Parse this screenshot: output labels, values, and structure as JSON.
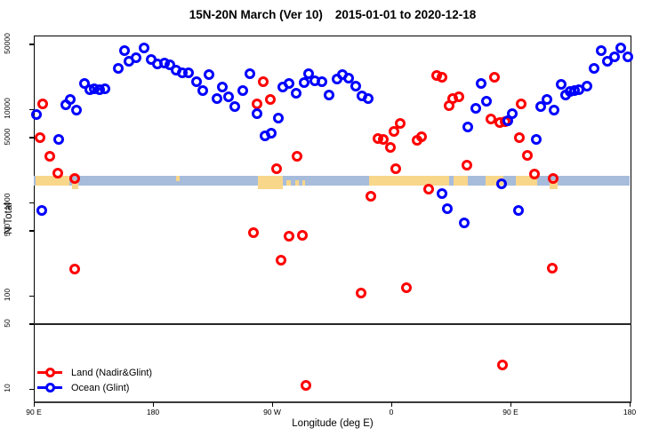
{
  "chart_data": {
    "type": "scatter",
    "title": "15N-20N March (Ver 10)",
    "subtitle": "2015-01-01 to 2020-12-18",
    "xlabel": "Longitude (deg E)",
    "ylabel": "N Total",
    "x_range": [
      90,
      540
    ],
    "x_ticks": [
      {
        "lon": 90,
        "label": "90 E"
      },
      {
        "lon": 180,
        "label": "180"
      },
      {
        "lon": 270,
        "label": "90 W"
      },
      {
        "lon": 360,
        "label": "0"
      },
      {
        "lon": 450,
        "label": "90 E"
      },
      {
        "lon": 540,
        "label": "180"
      }
    ],
    "y_scale": "log",
    "y_range": [
      9,
      57000
    ],
    "y_ticks": [
      10,
      50,
      100,
      500,
      1000,
      5000,
      10000,
      50000
    ],
    "reference_line_y": 50,
    "grid": false,
    "legend_position": "bottom-left",
    "colors": {
      "land": "#ff0000",
      "ocean": "#0000ff",
      "map_ocean": "#a7bcdb",
      "map_land": "#f8d68a"
    },
    "map_band": {
      "description": "15N-20N latitude strip world map: ocean blue with tan land patches",
      "value_range": [
        1500,
        1950
      ],
      "land_patches": [
        {
          "from": 91.3,
          "to": 117.0,
          "part": "full"
        },
        {
          "from": 119.0,
          "to": 123.6,
          "part": "bottomdeep"
        },
        {
          "from": 197.5,
          "to": 200.1,
          "part": "top"
        },
        {
          "from": 259.3,
          "to": 278.1,
          "part": "deep"
        },
        {
          "from": 280.8,
          "to": 284.1,
          "part": "bottom"
        },
        {
          "from": 287.5,
          "to": 290.2,
          "part": "bottom"
        },
        {
          "from": 292.8,
          "to": 294.8,
          "part": "bottom"
        },
        {
          "from": 343.2,
          "to": 403.6,
          "part": "full"
        },
        {
          "from": 407.0,
          "to": 417.8,
          "part": "full"
        },
        {
          "from": 431.2,
          "to": 444.6,
          "part": "full"
        },
        {
          "from": 454.0,
          "to": 470.1,
          "part": "full"
        },
        {
          "from": 479.5,
          "to": 485.5,
          "part": "bottomdeep"
        }
      ]
    },
    "series": [
      {
        "name": "Land (Nadir&Glint)",
        "color_key": "land",
        "points": [
          [
            94.7,
            5000
          ],
          [
            96.7,
            11400
          ],
          [
            102.1,
            3100
          ],
          [
            108.1,
            2060
          ],
          [
            120.9,
            1810
          ],
          [
            120.9,
            193
          ],
          [
            255.9,
            470
          ],
          [
            276.7,
            240
          ],
          [
            282.8,
            430
          ],
          [
            292.8,
            440
          ],
          [
            258.6,
            11400
          ],
          [
            263.3,
            19700
          ],
          [
            268.6,
            12700
          ],
          [
            273.3,
            2300
          ],
          [
            288.8,
            3100
          ],
          [
            337.1,
            107
          ],
          [
            344.6,
            1170
          ],
          [
            349.9,
            4850
          ],
          [
            353.9,
            4740
          ],
          [
            359.3,
            3890
          ],
          [
            362.0,
            5780
          ],
          [
            366.7,
            7050
          ],
          [
            363.3,
            2300
          ],
          [
            371.4,
            122
          ],
          [
            379.5,
            4640
          ],
          [
            382.8,
            5070
          ],
          [
            388.2,
            1390
          ],
          [
            394.2,
            23000
          ],
          [
            398.3,
            22000
          ],
          [
            403.6,
            10900
          ],
          [
            406.3,
            13000
          ],
          [
            411.0,
            13600
          ],
          [
            417.0,
            2510
          ],
          [
            435.2,
            7850
          ],
          [
            437.8,
            22000
          ],
          [
            441.9,
            7200
          ],
          [
            445.9,
            7360
          ],
          [
            456.7,
            4960
          ],
          [
            458.0,
            11400
          ],
          [
            462.7,
            3200
          ],
          [
            468.1,
            2010
          ],
          [
            482.2,
            1810
          ],
          [
            481.5,
            197
          ],
          [
            295.5,
            11
          ],
          [
            443.9,
            18
          ]
        ]
      },
      {
        "name": "Ocean (Glint)",
        "color_key": "ocean",
        "points": [
          [
            92,
            8800
          ],
          [
            96,
            820
          ],
          [
            108.8,
            4700
          ],
          [
            114.2,
            11200
          ],
          [
            117.5,
            12700
          ],
          [
            122.2,
            9800
          ],
          [
            128.3,
            18900
          ],
          [
            132.3,
            16200
          ],
          [
            135.7,
            16600
          ],
          [
            139.7,
            16200
          ],
          [
            143.7,
            16600
          ],
          [
            153.8,
            27400
          ],
          [
            158.5,
            42600
          ],
          [
            161.9,
            32700
          ],
          [
            167.2,
            35700
          ],
          [
            173.3,
            45400
          ],
          [
            178.6,
            34100
          ],
          [
            183.3,
            30600
          ],
          [
            188.7,
            31300
          ],
          [
            192.7,
            29900
          ],
          [
            197.4,
            26300
          ],
          [
            202.1,
            24600
          ],
          [
            206.8,
            24600
          ],
          [
            212.9,
            19700
          ],
          [
            217.6,
            15900
          ],
          [
            222.3,
            23500
          ],
          [
            228.3,
            13000
          ],
          [
            232.4,
            17300
          ],
          [
            237.1,
            13600
          ],
          [
            241.8,
            10700
          ],
          [
            247.8,
            15900
          ],
          [
            253.2,
            24000
          ],
          [
            258.6,
            9000
          ],
          [
            264.6,
            5200
          ],
          [
            269.3,
            5500
          ],
          [
            274.7,
            8000
          ],
          [
            278.1,
            17300
          ],
          [
            282.8,
            18900
          ],
          [
            288.1,
            14800
          ],
          [
            294.2,
            19300
          ],
          [
            297.5,
            24000
          ],
          [
            302.2,
            20200
          ],
          [
            307.6,
            19700
          ],
          [
            313.0,
            14200
          ],
          [
            319.0,
            21100
          ],
          [
            323.0,
            23500
          ],
          [
            327.7,
            21500
          ],
          [
            333.1,
            17700
          ],
          [
            337.8,
            13900
          ],
          [
            342.5,
            13000
          ],
          [
            398.3,
            1250
          ],
          [
            402.3,
            860
          ],
          [
            415.1,
            600
          ],
          [
            443.3,
            1590
          ],
          [
            456.0,
            820
          ],
          [
            417.8,
            6500
          ],
          [
            423.8,
            10200
          ],
          [
            427.8,
            18900
          ],
          [
            431.9,
            12200
          ],
          [
            448.0,
            7500
          ],
          [
            451.3,
            9000
          ],
          [
            469.5,
            4700
          ],
          [
            472.8,
            10700
          ],
          [
            477.5,
            12700
          ],
          [
            482.9,
            9800
          ],
          [
            488.3,
            18500
          ],
          [
            491.6,
            14200
          ],
          [
            495.0,
            15500
          ],
          [
            498.4,
            15900
          ],
          [
            501.7,
            16200
          ],
          [
            507.7,
            17700
          ],
          [
            513.1,
            27400
          ],
          [
            518.5,
            42600
          ],
          [
            523.2,
            32700
          ],
          [
            528.6,
            36500
          ],
          [
            533.3,
            45400
          ],
          [
            538.7,
            36500
          ]
        ]
      }
    ]
  }
}
